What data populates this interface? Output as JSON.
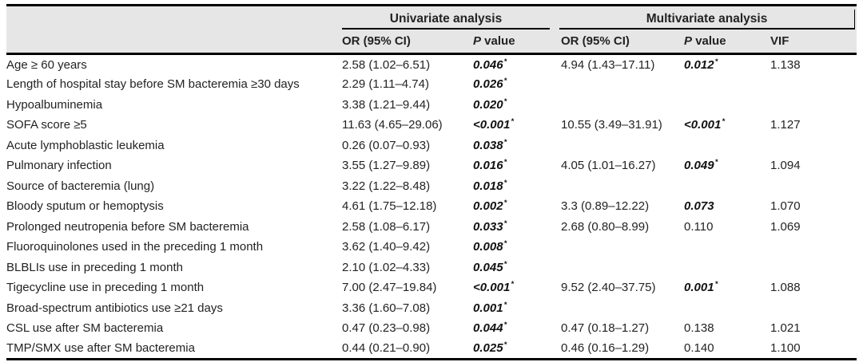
{
  "colors": {
    "header_bg": "#e6e6e6",
    "rule": "#000000",
    "text": "#232323"
  },
  "table": {
    "group_headers": [
      {
        "label": "Univariate analysis"
      },
      {
        "label": "Multivariate analysis"
      }
    ],
    "sub_headers": {
      "or_univariate": "OR (95% CI)",
      "p_univariate": "P value",
      "or_multivariate": "OR (95% CI)",
      "p_multivariate": "P value",
      "vif": "VIF"
    },
    "rows": [
      {
        "variable": "Age ≥ 60 years",
        "uni_or": "2.58 (1.02–6.51)",
        "uni_p": "0.046",
        "uni_p_star": true,
        "uni_p_emph": true,
        "multi_or": "4.94 (1.43–17.11)",
        "multi_p": "0.012",
        "multi_p_star": true,
        "multi_p_emph": true,
        "vif": "1.138"
      },
      {
        "variable": "Length of hospital stay before SM bacteremia ≥30 days",
        "uni_or": "2.29 (1.11–4.74)",
        "uni_p": "0.026",
        "uni_p_star": true,
        "uni_p_emph": true,
        "multi_or": "",
        "multi_p": "",
        "multi_p_star": false,
        "multi_p_emph": false,
        "vif": ""
      },
      {
        "variable": "Hypoalbuminemia",
        "uni_or": "3.38 (1.21–9.44)",
        "uni_p": "0.020",
        "uni_p_star": true,
        "uni_p_emph": true,
        "multi_or": "",
        "multi_p": "",
        "multi_p_star": false,
        "multi_p_emph": false,
        "vif": ""
      },
      {
        "variable": "SOFA score ≥5",
        "uni_or": "11.63 (4.65–29.06)",
        "uni_p": "<0.001",
        "uni_p_star": true,
        "uni_p_emph": true,
        "multi_or": "10.55 (3.49–31.91)",
        "multi_p": "<0.001",
        "multi_p_star": true,
        "multi_p_emph": true,
        "vif": "1.127"
      },
      {
        "variable": "Acute lymphoblastic leukemia",
        "uni_or": "0.26 (0.07–0.93)",
        "uni_p": "0.038",
        "uni_p_star": true,
        "uni_p_emph": true,
        "multi_or": "",
        "multi_p": "",
        "multi_p_star": false,
        "multi_p_emph": false,
        "vif": ""
      },
      {
        "variable": "Pulmonary infection",
        "uni_or": "3.55 (1.27–9.89)",
        "uni_p": "0.016",
        "uni_p_star": true,
        "uni_p_emph": true,
        "multi_or": "4.05 (1.01–16.27)",
        "multi_p": "0.049",
        "multi_p_star": true,
        "multi_p_emph": true,
        "vif": "1.094"
      },
      {
        "variable": "Source of bacteremia (lung)",
        "uni_or": "3.22 (1.22–8.48)",
        "uni_p": "0.018",
        "uni_p_star": true,
        "uni_p_emph": true,
        "multi_or": "",
        "multi_p": "",
        "multi_p_star": false,
        "multi_p_emph": false,
        "vif": ""
      },
      {
        "variable": "Bloody sputum or hemoptysis",
        "uni_or": "4.61 (1.75–12.18)",
        "uni_p": "0.002",
        "uni_p_star": true,
        "uni_p_emph": true,
        "multi_or": "3.3 (0.89–12.22)",
        "multi_p": "0.073",
        "multi_p_star": false,
        "multi_p_emph": true,
        "vif": "1.070"
      },
      {
        "variable": "Prolonged neutropenia before SM bacteremia",
        "uni_or": "2.58 (1.08–6.17)",
        "uni_p": "0.033",
        "uni_p_star": true,
        "uni_p_emph": true,
        "multi_or": "2.68 (0.80–8.99)",
        "multi_p": "0.110",
        "multi_p_star": false,
        "multi_p_emph": false,
        "vif": "1.069"
      },
      {
        "variable": "Fluoroquinolones used in the preceding 1 month",
        "uni_or": "3.62 (1.40–9.42)",
        "uni_p": "0.008",
        "uni_p_star": true,
        "uni_p_emph": true,
        "multi_or": "",
        "multi_p": "",
        "multi_p_star": false,
        "multi_p_emph": false,
        "vif": ""
      },
      {
        "variable": "BLBLIs use in preceding 1 month",
        "uni_or": "2.10 (1.02–4.33)",
        "uni_p": "0.045",
        "uni_p_star": true,
        "uni_p_emph": true,
        "multi_or": "",
        "multi_p": "",
        "multi_p_star": false,
        "multi_p_emph": false,
        "vif": ""
      },
      {
        "variable": "Tigecycline use in preceding 1 month",
        "uni_or": "7.00 (2.47–19.84)",
        "uni_p": "<0.001",
        "uni_p_star": true,
        "uni_p_emph": true,
        "multi_or": "9.52 (2.40–37.75)",
        "multi_p": "0.001",
        "multi_p_star": true,
        "multi_p_emph": true,
        "vif": "1.088"
      },
      {
        "variable": "Broad-spectrum antibiotics use ≥21 days",
        "uni_or": "3.36 (1.60–7.08)",
        "uni_p": "0.001",
        "uni_p_star": true,
        "uni_p_emph": true,
        "multi_or": "",
        "multi_p": "",
        "multi_p_star": false,
        "multi_p_emph": false,
        "vif": ""
      },
      {
        "variable": "CSL use after SM bacteremia",
        "uni_or": "0.47 (0.23–0.98)",
        "uni_p": "0.044",
        "uni_p_star": true,
        "uni_p_emph": true,
        "multi_or": "0.47 (0.18–1.27)",
        "multi_p": "0.138",
        "multi_p_star": false,
        "multi_p_emph": false,
        "vif": "1.021"
      },
      {
        "variable": "TMP/SMX use after SM bacteremia",
        "uni_or": "0.44 (0.21–0.90)",
        "uni_p": "0.025",
        "uni_p_star": true,
        "uni_p_emph": true,
        "multi_or": "0.46 (0.16–1.29)",
        "multi_p": "0.140",
        "multi_p_star": false,
        "multi_p_emph": false,
        "vif": "1.100"
      }
    ]
  }
}
